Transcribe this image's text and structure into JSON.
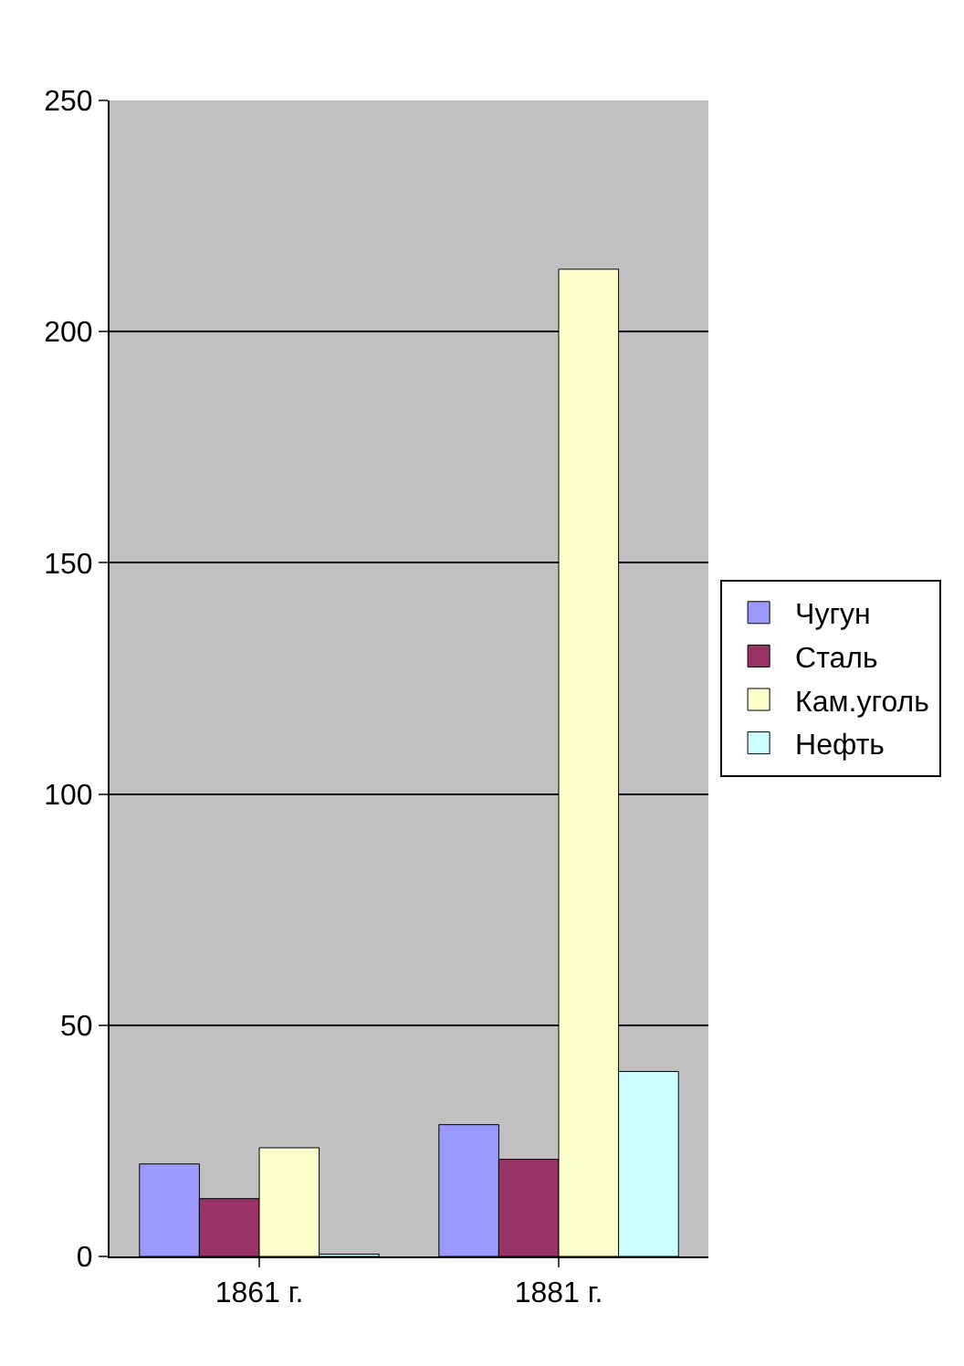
{
  "chart_data": {
    "type": "bar",
    "categories": [
      "1861 г.",
      "1881 г."
    ],
    "series": [
      {
        "name": "Чугун",
        "color": "#9999ff",
        "values": [
          20,
          28.5
        ]
      },
      {
        "name": "Сталь",
        "color": "#993366",
        "values": [
          12.5,
          21
        ]
      },
      {
        "name": "Кам.уголь",
        "color": "#ffffcc",
        "values": [
          23.5,
          213.5
        ]
      },
      {
        "name": "Нефть",
        "color": "#ccffff",
        "values": [
          0.5,
          40
        ]
      }
    ],
    "ylim": [
      0,
      250
    ],
    "yticks": [
      0,
      50,
      100,
      150,
      200,
      250
    ],
    "grid": "y",
    "legend": "right"
  }
}
